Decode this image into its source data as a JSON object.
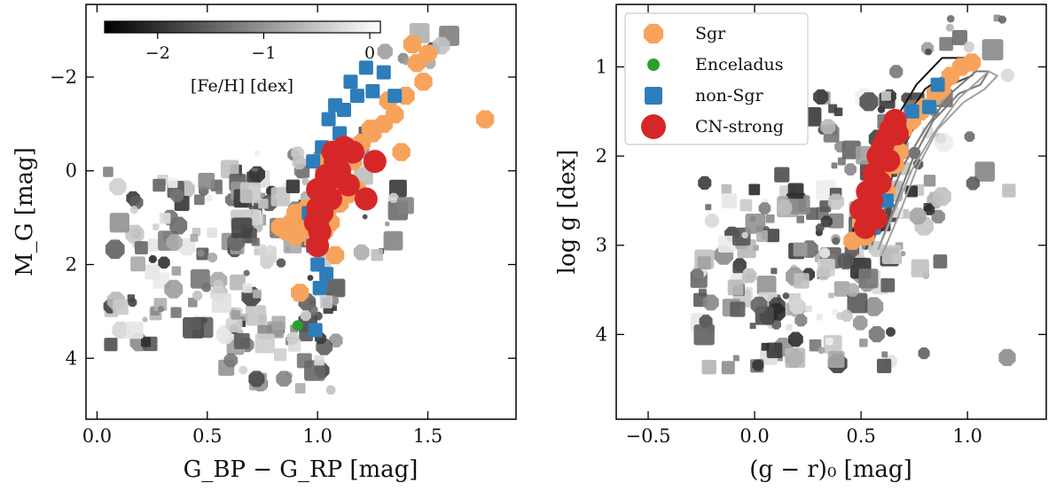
{
  "chart_data": [
    {
      "type": "scatter",
      "panel": "left",
      "xlabel": "G_BP − G_RP [mag]",
      "ylabel": "M_G [mag]",
      "xlim": [
        -0.05,
        1.9
      ],
      "ylim": [
        5.3,
        -3.55
      ],
      "y_inverted": true,
      "xticks": [
        {
          "v": 0.0,
          "label": "0.0"
        },
        {
          "v": 0.5,
          "label": "0.5"
        },
        {
          "v": 1.0,
          "label": "1.0"
        },
        {
          "v": 1.5,
          "label": "1.5"
        }
      ],
      "yticks": [
        {
          "v": -2,
          "label": "−2"
        },
        {
          "v": 0,
          "label": "0"
        },
        {
          "v": 2,
          "label": "2"
        },
        {
          "v": 4,
          "label": "4"
        }
      ],
      "colorbar": {
        "label": "[Fe/H] [dex]",
        "range": [
          -2.5,
          0.1
        ],
        "ticks": [
          {
            "v": -2,
            "label": "−2"
          },
          {
            "v": -1,
            "label": "−1"
          },
          {
            "v": 0,
            "label": "0"
          }
        ],
        "cmap": [
          "#000000",
          "#ffffff"
        ],
        "location": "top-left"
      },
      "background_field_seed": 7,
      "background_field_count": 260,
      "series": [
        {
          "name": "Sgr",
          "color": "#f7a35c",
          "marker": "octagon",
          "points": [
            [
              1.43,
              -2.7
            ],
            [
              1.45,
              -2.3
            ],
            [
              1.48,
              -1.9
            ],
            [
              1.4,
              -1.6
            ],
            [
              1.35,
              -1.2
            ],
            [
              1.3,
              -1.0
            ],
            [
              1.25,
              -0.8
            ],
            [
              1.2,
              -0.6
            ],
            [
              1.16,
              -0.2
            ],
            [
              1.12,
              0.2
            ],
            [
              1.09,
              0.4
            ],
            [
              1.14,
              0.5
            ],
            [
              1.1,
              0.7
            ],
            [
              1.18,
              0.4
            ],
            [
              1.05,
              0.8
            ],
            [
              1.0,
              0.9
            ],
            [
              0.95,
              0.8
            ],
            [
              0.92,
              1.0
            ],
            [
              0.96,
              1.2
            ],
            [
              0.88,
              1.1
            ],
            [
              0.83,
              1.2
            ],
            [
              0.9,
              1.4
            ],
            [
              0.98,
              1.5
            ],
            [
              1.03,
              1.3
            ],
            [
              1.06,
              1.1
            ],
            [
              1.08,
              1.8
            ],
            [
              0.92,
              2.6
            ],
            [
              1.24,
              -0.9
            ],
            [
              1.32,
              -1.5
            ],
            [
              1.38,
              -0.4
            ],
            [
              1.5,
              -2.5
            ],
            [
              1.76,
              -1.1
            ],
            [
              1.02,
              -0.3
            ],
            [
              0.9,
              0.9
            ],
            [
              0.86,
              1.3
            ]
          ]
        },
        {
          "name": "Enceladus",
          "color": "#2ca02c",
          "marker": "circle",
          "points": [
            [
              0.91,
              3.3
            ]
          ]
        },
        {
          "name": "non-Sgr",
          "color": "#2e7dbb",
          "marker": "square",
          "points": [
            [
              1.22,
              -2.2
            ],
            [
              1.18,
              -1.6
            ],
            [
              1.12,
              -1.3
            ],
            [
              1.05,
              -1.1
            ],
            [
              1.25,
              -1.7
            ],
            [
              1.1,
              -0.8
            ],
            [
              1.35,
              -1.6
            ],
            [
              1.02,
              -0.5
            ],
            [
              0.98,
              -0.2
            ],
            [
              0.96,
              0.9
            ],
            [
              1.02,
              1.2
            ],
            [
              0.98,
              1.6
            ],
            [
              1.0,
              2.0
            ],
            [
              1.04,
              2.2
            ],
            [
              1.01,
              2.5
            ],
            [
              0.99,
              3.4
            ],
            [
              1.08,
              -1.4
            ],
            [
              1.3,
              -2.1
            ],
            [
              1.15,
              -1.9
            ]
          ]
        },
        {
          "name": "CN-strong",
          "color": "#d62728",
          "marker": "circle",
          "points": [
            [
              1.22,
              0.6
            ],
            [
              1.14,
              0.3
            ],
            [
              1.1,
              0.0
            ],
            [
              1.08,
              -0.2
            ],
            [
              1.05,
              0.2
            ],
            [
              1.03,
              0.5
            ],
            [
              1.0,
              0.8
            ],
            [
              0.99,
              1.1
            ],
            [
              1.01,
              1.3
            ],
            [
              1.0,
              1.6
            ],
            [
              1.04,
              0.1
            ],
            [
              1.07,
              -0.4
            ],
            [
              1.12,
              -0.5
            ],
            [
              1.16,
              -0.4
            ],
            [
              1.02,
              0.9
            ],
            [
              1.06,
              0.6
            ],
            [
              1.0,
              0.4
            ],
            [
              1.26,
              -0.2
            ]
          ]
        }
      ]
    },
    {
      "type": "scatter",
      "panel": "right",
      "xlabel": "(g − r)₀ [mag]",
      "ylabel": "log g [dex]",
      "xlim": [
        -0.65,
        1.37
      ],
      "ylim": [
        4.95,
        0.3
      ],
      "y_inverted": true,
      "xticks": [
        {
          "v": -0.5,
          "label": "−0.5"
        },
        {
          "v": 0.0,
          "label": "0.0"
        },
        {
          "v": 0.5,
          "label": "0.5"
        },
        {
          "v": 1.0,
          "label": "1.0"
        }
      ],
      "yticks": [
        {
          "v": 1,
          "label": "1"
        },
        {
          "v": 2,
          "label": "2"
        },
        {
          "v": 3,
          "label": "3"
        },
        {
          "v": 4,
          "label": "4"
        }
      ],
      "legend": {
        "position": "top-left",
        "entries": [
          "Sgr",
          "Enceladus",
          "non-Sgr",
          "CN-strong"
        ]
      },
      "background_field_seed": 11,
      "background_field_count": 260,
      "isochrones": [
        {
          "color": "#111111",
          "x": [
            0.45,
            0.5,
            0.58,
            0.66,
            0.76,
            0.88,
            1.0,
            1.02,
            0.92,
            0.8,
            0.72,
            0.62,
            0.55,
            0.5,
            0.46,
            0.45
          ],
          "y": [
            2.95,
            2.5,
            2.0,
            1.6,
            1.2,
            0.9,
            0.9,
            1.0,
            1.05,
            1.25,
            1.55,
            2.1,
            2.6,
            2.9,
            3.0,
            2.95
          ]
        },
        {
          "color": "#444444",
          "x": [
            0.5,
            0.56,
            0.64,
            0.74,
            0.86,
            0.98,
            1.05,
            1.02,
            0.92,
            0.8,
            0.7,
            0.62,
            0.56,
            0.52
          ],
          "y": [
            3.0,
            2.6,
            2.1,
            1.7,
            1.3,
            1.0,
            1.0,
            1.1,
            1.2,
            1.45,
            1.9,
            2.4,
            2.85,
            3.05
          ]
        },
        {
          "color": "#777777",
          "x": [
            0.55,
            0.62,
            0.7,
            0.8,
            0.92,
            1.04,
            1.1,
            1.06,
            0.96,
            0.84,
            0.74,
            0.66,
            0.58
          ],
          "y": [
            3.0,
            2.55,
            2.1,
            1.7,
            1.3,
            1.05,
            1.05,
            1.2,
            1.3,
            1.6,
            2.05,
            2.55,
            3.05
          ]
        },
        {
          "color": "#a0a0a0",
          "x": [
            0.58,
            0.66,
            0.74,
            0.84,
            0.96,
            1.1,
            1.14,
            1.08,
            0.98,
            0.86,
            0.76,
            0.68,
            0.6
          ],
          "y": [
            3.05,
            2.6,
            2.15,
            1.75,
            1.35,
            1.05,
            1.1,
            1.25,
            1.4,
            1.7,
            2.15,
            2.65,
            3.1
          ]
        }
      ],
      "series": [
        {
          "name": "Sgr",
          "color": "#f7a35c",
          "marker": "octagon",
          "points": [
            [
              0.46,
              2.95
            ],
            [
              0.5,
              2.75
            ],
            [
              0.55,
              2.5
            ],
            [
              0.6,
              2.2
            ],
            [
              0.64,
              1.9
            ],
            [
              0.7,
              1.7
            ],
            [
              0.78,
              1.5
            ],
            [
              0.85,
              1.3
            ],
            [
              0.92,
              1.1
            ],
            [
              0.97,
              1.0
            ],
            [
              1.02,
              0.95
            ],
            [
              0.62,
              2.4
            ],
            [
              0.58,
              2.7
            ],
            [
              0.66,
              2.1
            ],
            [
              0.74,
              1.6
            ],
            [
              0.52,
              2.9
            ],
            [
              0.56,
              2.3
            ],
            [
              0.68,
              1.95
            ],
            [
              0.8,
              1.45
            ],
            [
              0.88,
              1.25
            ]
          ]
        },
        {
          "name": "Enceladus",
          "color": "#2ca02c",
          "marker": "circle",
          "points": [
            [
              0.5,
              2.78
            ]
          ]
        },
        {
          "name": "non-Sgr",
          "color": "#2e7dbb",
          "marker": "square",
          "points": [
            [
              0.56,
              2.8
            ],
            [
              0.62,
              2.5
            ],
            [
              0.68,
              1.6
            ],
            [
              0.74,
              1.5
            ],
            [
              0.82,
              1.45
            ],
            [
              0.86,
              1.2
            ],
            [
              0.6,
              2.0
            ]
          ]
        },
        {
          "name": "CN-strong",
          "color": "#d62728",
          "marker": "circle",
          "points": [
            [
              0.5,
              2.6
            ],
            [
              0.53,
              2.4
            ],
            [
              0.56,
              2.2
            ],
            [
              0.58,
              2.0
            ],
            [
              0.6,
              1.9
            ],
            [
              0.62,
              1.8
            ],
            [
              0.64,
              1.7
            ],
            [
              0.66,
              1.6
            ],
            [
              0.55,
              2.5
            ],
            [
              0.57,
              2.7
            ],
            [
              0.52,
              2.8
            ],
            [
              0.59,
              2.3
            ],
            [
              0.63,
              2.05
            ],
            [
              0.67,
              1.75
            ]
          ]
        }
      ]
    }
  ]
}
